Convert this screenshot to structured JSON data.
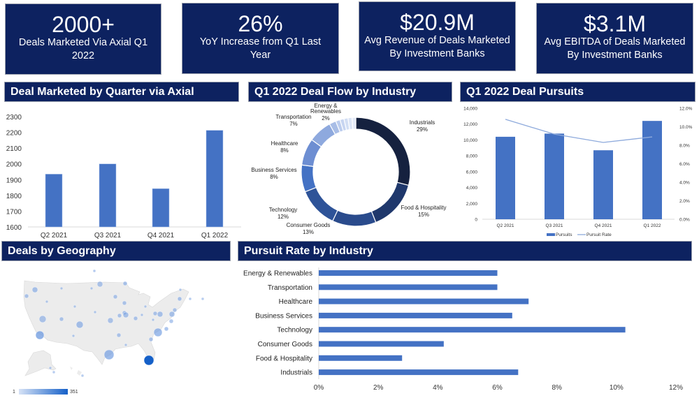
{
  "kpis": [
    {
      "value": "2000+",
      "label": "Deals Marketed Via Axial Q1 2022"
    },
    {
      "value": "26%",
      "label": "YoY Increase from Q1 Last Year"
    },
    {
      "value": "$20.9M",
      "label": "Avg Revenue of Deals Marketed By Investment Banks"
    },
    {
      "value": "$3.1M",
      "label": "Avg EBITDA of Deals Marketed By Investment Banks"
    }
  ],
  "headers": {
    "deals_by_quarter": "Deal Marketed by Quarter via Axial",
    "deal_flow": "Q1 2022 Deal Flow by Industry",
    "pursuits": "Q1 2022 Deal Pursuits",
    "geography": "Deals by Geography",
    "pursuit_rate": "Pursuit Rate by Industry"
  },
  "colors": {
    "navy": "#0d2260",
    "bar": "#4472c4",
    "line": "#8eaadc"
  },
  "chart_data": [
    {
      "id": "deals_by_quarter",
      "type": "bar",
      "categories": [
        "Q2 2021",
        "Q3 2021",
        "Q4 2021",
        "Q1 2022"
      ],
      "values": [
        1935,
        2000,
        1843,
        2213
      ],
      "ylim": [
        1600,
        2300
      ],
      "yticks": [
        "1600",
        "1700",
        "1800",
        "1900",
        "2000",
        "2100",
        "2200",
        "2300"
      ],
      "grid": false
    },
    {
      "id": "deal_flow",
      "type": "pie",
      "donut": true,
      "slices": [
        {
          "label": "Industrials",
          "pct": "29%",
          "value": 29,
          "color": "#15213f"
        },
        {
          "label": "Food & Hospitality",
          "pct": "15%",
          "value": 15,
          "color": "#1f386c"
        },
        {
          "label": "Consumer Goods",
          "pct": "13%",
          "value": 13,
          "color": "#2a4b8c"
        },
        {
          "label": "Technology",
          "pct": "12%",
          "value": 12,
          "color": "#2e5398"
        },
        {
          "label": "Business Services",
          "pct": "8%",
          "value": 8,
          "color": "#4472c4"
        },
        {
          "label": "Healthcare",
          "pct": "8%",
          "value": 8,
          "color": "#6d8ed2"
        },
        {
          "label": "Transportation",
          "pct": "7%",
          "value": 7,
          "color": "#8ea9de"
        },
        {
          "label": "Energy & Renewables",
          "pct": "2%",
          "value": 2,
          "color": "#a8bde6"
        },
        {
          "label": "",
          "pct": "",
          "value": 1.3,
          "color": "#bccdee"
        },
        {
          "label": "",
          "pct": "",
          "value": 1.2,
          "color": "#c7d5f1"
        },
        {
          "label": "",
          "pct": "",
          "value": 1.2,
          "color": "#d2def4"
        },
        {
          "label": "",
          "pct": "",
          "value": 1.2,
          "color": "#dbe4f6"
        },
        {
          "label": "",
          "pct": "",
          "value": 1.1,
          "color": "#e3eaf8"
        }
      ]
    },
    {
      "id": "pursuits",
      "type": "bar",
      "categories": [
        "Q2 2021",
        "Q3 2021",
        "Q4 2021",
        "Q1 2022"
      ],
      "series": [
        {
          "name": "Pursuits",
          "type": "bar",
          "axis": "left",
          "values": [
            10400,
            10800,
            8700,
            12400
          ]
        },
        {
          "name": "Pursuit Rate",
          "type": "line",
          "axis": "right",
          "values": [
            10.8,
            9.2,
            8.3,
            8.9
          ]
        }
      ],
      "ylim": [
        0,
        14000
      ],
      "yticks": [
        "0",
        "2,000",
        "4,000",
        "6,000",
        "8,000",
        "10,000",
        "12,000",
        "14,000"
      ],
      "y2lim": [
        0,
        12
      ],
      "y2ticks": [
        "0.0%",
        "2.0%",
        "4.0%",
        "6.0%",
        "8.0%",
        "10.0%",
        "12.0%"
      ],
      "legend": "bottom"
    },
    {
      "id": "pursuit_rate",
      "type": "bar",
      "orientation": "horizontal",
      "categories": [
        "Energy & Renewables",
        "Transportation",
        "Healthcare",
        "Business Services",
        "Technology",
        "Consumer Goods",
        "Food & Hospitality",
        "Industrials"
      ],
      "values": [
        6.0,
        6.0,
        7.05,
        6.5,
        10.3,
        4.2,
        2.8,
        6.7
      ],
      "xlim": [
        0,
        12
      ],
      "xticks": [
        "0%",
        "2%",
        "4%",
        "6%",
        "8%",
        "10%",
        "12%"
      ]
    }
  ],
  "geography": {
    "legend_min": "1",
    "legend_max": "351",
    "scale_low": "#d6e2f6",
    "scale_high": "#1560c8"
  }
}
